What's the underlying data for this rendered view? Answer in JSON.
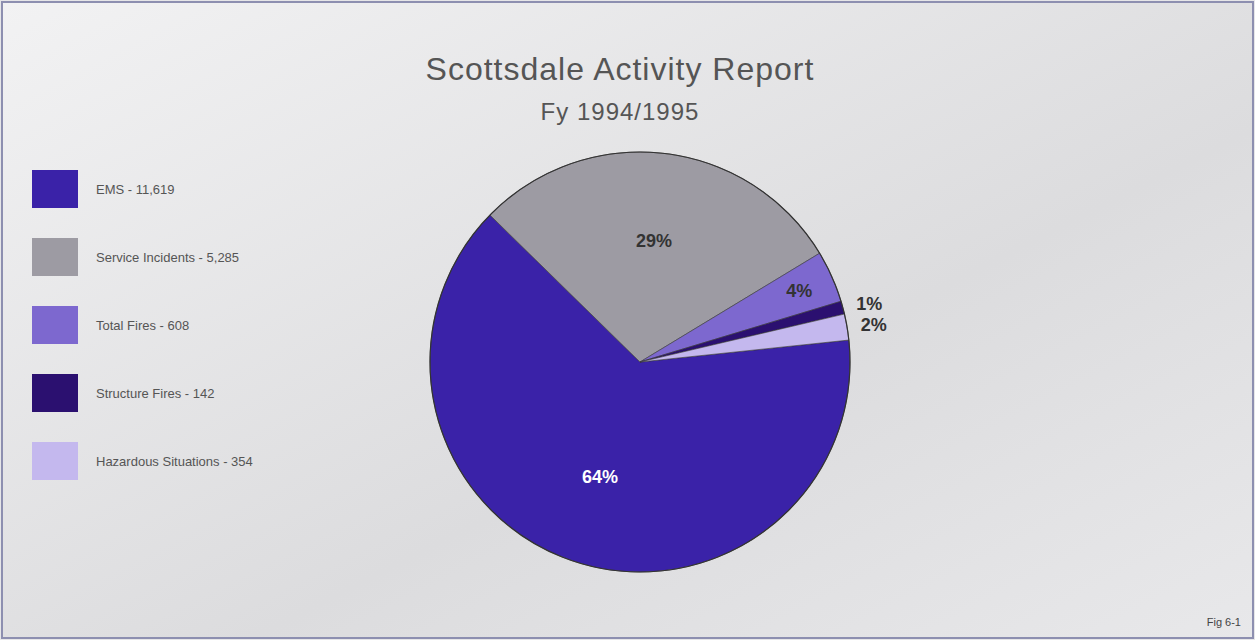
{
  "chart_data": {
    "type": "pie",
    "title": "Scottsdale Activity Report",
    "subtitle": "Fy 1994/1995",
    "categories": [
      "EMS - 11,619",
      "Service Incidents - 5,285",
      "Total Fires - 608",
      "Structure Fires - 142",
      "Hazardous Situations - 354"
    ],
    "values": [
      64,
      29,
      4,
      1,
      2
    ],
    "value_labels": [
      "64%",
      "29%",
      "4%",
      "1%",
      "2%"
    ],
    "colors": [
      "#3a22a8",
      "#9d9ba3",
      "#7d68cf",
      "#2b1070",
      "#c4b8ee"
    ],
    "data_labels": true,
    "legend": "left",
    "annotations": [
      "Fig 6-1"
    ]
  }
}
